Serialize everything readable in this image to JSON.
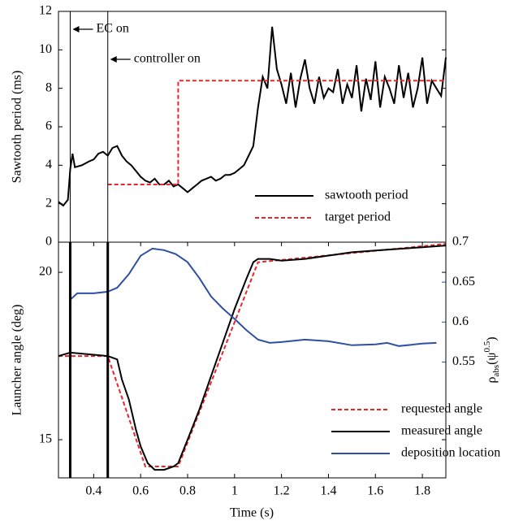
{
  "chart_data": [
    {
      "type": "line",
      "ylabel": "Sawtooth period (ms)",
      "xlim": [
        0.25,
        1.9
      ],
      "ylim": [
        0,
        12
      ],
      "yticks": [
        0,
        2,
        4,
        6,
        8,
        10,
        12
      ],
      "events": [
        {
          "x": 0.3,
          "label": "EC on"
        },
        {
          "x": 0.46,
          "label": "controller on"
        }
      ],
      "legend": "lower right",
      "series": [
        {
          "name": "sawtooth period",
          "color": "#000000",
          "dash": false,
          "x": [
            0.25,
            0.27,
            0.29,
            0.3,
            0.31,
            0.32,
            0.35,
            0.38,
            0.4,
            0.42,
            0.44,
            0.46,
            0.48,
            0.5,
            0.52,
            0.54,
            0.56,
            0.58,
            0.6,
            0.62,
            0.64,
            0.66,
            0.68,
            0.7,
            0.72,
            0.74,
            0.76,
            0.78,
            0.8,
            0.82,
            0.84,
            0.86,
            0.88,
            0.9,
            0.92,
            0.94,
            0.96,
            0.98,
            1.0,
            1.02,
            1.04,
            1.06,
            1.08,
            1.1,
            1.12,
            1.14,
            1.16,
            1.18,
            1.2,
            1.22,
            1.24,
            1.26,
            1.28,
            1.3,
            1.32,
            1.34,
            1.36,
            1.38,
            1.4,
            1.42,
            1.44,
            1.46,
            1.48,
            1.5,
            1.52,
            1.54,
            1.56,
            1.58,
            1.6,
            1.62,
            1.64,
            1.66,
            1.68,
            1.7,
            1.72,
            1.74,
            1.76,
            1.78,
            1.8,
            1.82,
            1.84,
            1.86,
            1.88,
            1.9
          ],
          "values": [
            2.1,
            1.9,
            2.2,
            3.8,
            4.6,
            3.9,
            4.0,
            4.2,
            4.3,
            4.6,
            4.7,
            4.5,
            4.9,
            5.0,
            4.5,
            4.2,
            4.0,
            3.7,
            3.4,
            3.2,
            3.1,
            3.3,
            3.0,
            3.0,
            3.2,
            2.9,
            3.0,
            2.8,
            2.6,
            2.8,
            3.0,
            3.2,
            3.3,
            3.4,
            3.2,
            3.3,
            3.5,
            3.5,
            3.6,
            3.8,
            4.0,
            4.5,
            5.0,
            7.0,
            8.6,
            8.0,
            11.2,
            9.0,
            8.2,
            7.2,
            8.8,
            7.0,
            8.5,
            9.5,
            8.0,
            7.2,
            8.6,
            7.5,
            8.0,
            7.8,
            9.0,
            7.2,
            8.2,
            7.5,
            9.2,
            6.8,
            8.5,
            7.4,
            9.4,
            7.0,
            8.6,
            8.0,
            7.2,
            9.2,
            7.5,
            8.8,
            7.0,
            8.0,
            9.6,
            7.2,
            8.4,
            8.0,
            7.6,
            9.6
          ]
        },
        {
          "name": "target period",
          "color": "#e8262b",
          "dash": true,
          "x": [
            0.46,
            0.76,
            0.76,
            1.9
          ],
          "values": [
            3,
            3,
            8.4,
            8.4
          ]
        }
      ]
    },
    {
      "type": "line",
      "ylabel": "Launcher angle (deg)",
      "y2label": [
        "ρ",
        "abs",
        "(ψ",
        "0.5",
        ")"
      ],
      "xlabel": "Time (s)",
      "xlim": [
        0.25,
        1.9
      ],
      "ylim": [
        13.86,
        20.9
      ],
      "y2lim": [
        0.405,
        0.7
      ],
      "xticks": [
        0.4,
        0.6,
        0.8,
        1,
        1.2,
        1.4,
        1.6,
        1.8
      ],
      "yticks": [
        15,
        20
      ],
      "y2ticks": [
        0.55,
        0.6,
        0.65,
        0.7
      ],
      "y2color": "#2e4fa3",
      "events": [
        {
          "x": 0.3
        },
        {
          "x": 0.46
        }
      ],
      "legend": "lower right",
      "series": [
        {
          "name": "requested angle",
          "color": "#e8262b",
          "dash": true,
          "x": [
            0.25,
            0.46,
            0.62,
            0.76,
            1.1,
            1.9
          ],
          "values": [
            17.5,
            17.5,
            14.2,
            14.2,
            20.3,
            20.85
          ]
        },
        {
          "name": "measured angle",
          "color": "#000000",
          "dash": false,
          "x": [
            0.25,
            0.3,
            0.46,
            0.5,
            0.52,
            0.55,
            0.58,
            0.6,
            0.63,
            0.66,
            0.7,
            0.74,
            0.76,
            0.8,
            0.85,
            0.9,
            0.95,
            1.0,
            1.05,
            1.08,
            1.1,
            1.15,
            1.2,
            1.3,
            1.4,
            1.5,
            1.6,
            1.7,
            1.8,
            1.9
          ],
          "values": [
            17.5,
            17.6,
            17.5,
            17.4,
            16.8,
            16.2,
            15.3,
            14.8,
            14.3,
            14.1,
            14.1,
            14.2,
            14.3,
            15.0,
            15.9,
            16.9,
            17.9,
            18.9,
            19.8,
            20.3,
            20.4,
            20.4,
            20.35,
            20.4,
            20.5,
            20.6,
            20.65,
            20.7,
            20.75,
            20.8
          ]
        },
        {
          "name": "deposition location",
          "color": "#2e4fa3",
          "dash": false,
          "axis": "y2",
          "x": [
            0.3,
            0.33,
            0.4,
            0.46,
            0.5,
            0.55,
            0.6,
            0.65,
            0.7,
            0.75,
            0.8,
            0.85,
            0.9,
            0.95,
            1.0,
            1.05,
            1.1,
            1.15,
            1.2,
            1.3,
            1.4,
            1.5,
            1.6,
            1.65,
            1.7,
            1.8,
            1.86
          ],
          "values": [
            0.628,
            0.636,
            0.636,
            0.638,
            0.643,
            0.66,
            0.683,
            0.692,
            0.69,
            0.685,
            0.675,
            0.655,
            0.632,
            0.617,
            0.604,
            0.59,
            0.578,
            0.574,
            0.575,
            0.578,
            0.576,
            0.571,
            0.572,
            0.574,
            0.57,
            0.573,
            0.574
          ]
        }
      ]
    }
  ]
}
